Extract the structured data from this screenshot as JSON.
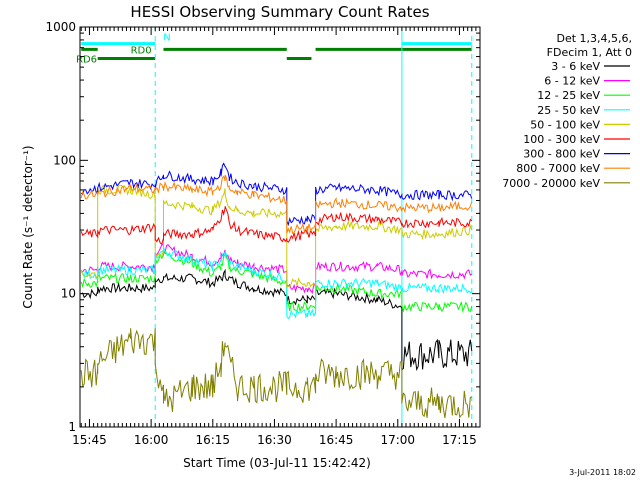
{
  "chart_data": {
    "type": "line",
    "title": "HESSI Observing Summary Count Rates",
    "xlabel": "Start Time (03-Jul-11 15:42:42)",
    "ylabel": "Count Rate (s⁻¹ detector⁻¹)",
    "y_scale": "log",
    "ylim": [
      1,
      1000
    ],
    "xlim": [
      "15:42:42",
      "17:20:00"
    ],
    "x_ticks": [
      "15:45",
      "16:00",
      "16:15",
      "16:30",
      "16:45",
      "17:00",
      "17:15"
    ],
    "y_ticks": [
      "1",
      "10",
      "100",
      "1000"
    ],
    "grid": false,
    "legend_header": [
      "Det 1,3,4,5,6,",
      "FDecim 1, Att 0"
    ],
    "timestamp": "3-Jul-2011 18:02",
    "annotations": [
      "N",
      "RD0",
      "RD6"
    ],
    "vertical_markers": [
      {
        "time": "16:01:00",
        "style": "dashed",
        "color": "#00ffff"
      },
      {
        "time": "17:01:00",
        "style": "solid",
        "color": "#00ffff"
      },
      {
        "time": "17:18:00",
        "style": "dashed",
        "color": "#00ffff"
      }
    ],
    "status_bars": [
      {
        "label": "N",
        "color": "#00ffff",
        "y": 750,
        "segments": [
          [
            "15:43",
            "16:01"
          ],
          [
            "17:01",
            "17:18"
          ]
        ]
      },
      {
        "label": "RD0",
        "color": "#008000",
        "y": 680,
        "segments": [
          [
            "15:43",
            "15:47"
          ],
          [
            "16:03",
            "16:33"
          ],
          [
            "16:40",
            "17:18"
          ]
        ]
      },
      {
        "label": "RD6",
        "color": "#008000",
        "y": 580,
        "segments": [
          [
            "15:47",
            "16:01"
          ],
          [
            "16:33",
            "16:39"
          ]
        ]
      }
    ],
    "x_points": [
      "15:43",
      "15:47",
      "15:47",
      "15:55",
      "16:01",
      "16:01",
      "16:03",
      "16:03",
      "16:10",
      "16:15",
      "16:17",
      "16:18",
      "16:19",
      "16:21",
      "16:25",
      "16:33",
      "16:33",
      "16:38",
      "16:40",
      "16:40",
      "16:45",
      "16:55",
      "17:01",
      "17:01",
      "17:10",
      "17:18"
    ],
    "series": [
      {
        "name": "3 - 6 keV",
        "color": "#000000",
        "values": [
          10,
          10,
          11,
          11,
          11,
          13,
          13,
          13,
          13,
          12,
          13,
          14,
          13,
          12,
          11,
          10,
          9,
          9,
          9,
          10,
          10,
          9,
          8,
          3.5,
          3.5,
          3.5
        ]
      },
      {
        "name": "6 - 12 keV",
        "color": "#ff00ff",
        "values": [
          15,
          15,
          16,
          16,
          16,
          20,
          22,
          22,
          19,
          17,
          19,
          20,
          18,
          17,
          16,
          15,
          11,
          11,
          11,
          16,
          16,
          16,
          15,
          14,
          14,
          14
        ]
      },
      {
        "name": "12 - 25 keV",
        "color": "#00ff00",
        "values": [
          12,
          12,
          13,
          13,
          13,
          18,
          20,
          20,
          17,
          14,
          16,
          19,
          16,
          15,
          14,
          12,
          8,
          8,
          8,
          11,
          11,
          10,
          10,
          8,
          8,
          8
        ]
      },
      {
        "name": "25 - 50 keV",
        "color": "#00ffff",
        "values": [
          14,
          14,
          15,
          15,
          15,
          19,
          21,
          21,
          18,
          16,
          18,
          20,
          17,
          16,
          15,
          13,
          7,
          7,
          7,
          12,
          12,
          12,
          11,
          11,
          11,
          11
        ]
      },
      {
        "name": "50 - 100 keV",
        "color": "#cccc00",
        "values": [
          14,
          14,
          60,
          60,
          55,
          20,
          20,
          48,
          45,
          42,
          50,
          58,
          45,
          42,
          40,
          40,
          12,
          12,
          12,
          30,
          32,
          32,
          30,
          28,
          28,
          30
        ]
      },
      {
        "name": "100 - 300 keV",
        "color": "#ff0000",
        "values": [
          28,
          28,
          30,
          30,
          32,
          25,
          25,
          28,
          28,
          30,
          38,
          45,
          34,
          30,
          28,
          26,
          26,
          28,
          28,
          35,
          38,
          36,
          34,
          34,
          34,
          34
        ]
      },
      {
        "name": "300 - 800 keV",
        "color": "#0000ff",
        "values": [
          60,
          62,
          62,
          68,
          66,
          66,
          78,
          78,
          72,
          70,
          80,
          95,
          75,
          68,
          64,
          60,
          35,
          36,
          36,
          60,
          62,
          60,
          55,
          55,
          55,
          55
        ]
      },
      {
        "name": "800 - 7000 keV",
        "color": "#ff8000",
        "values": [
          55,
          55,
          56,
          62,
          60,
          60,
          64,
          64,
          60,
          58,
          66,
          75,
          62,
          58,
          55,
          50,
          30,
          31,
          31,
          46,
          48,
          46,
          44,
          44,
          44,
          46
        ]
      },
      {
        "name": "7000 - 20000 keV",
        "color": "#808000",
        "values": [
          2.5,
          2.5,
          3,
          4.5,
          4.5,
          3,
          2,
          1.5,
          2,
          2,
          3,
          4.5,
          3,
          2,
          2,
          2,
          2,
          2,
          2,
          2.5,
          2.5,
          2.5,
          2.5,
          1.5,
          1.5,
          1.5
        ]
      }
    ]
  }
}
